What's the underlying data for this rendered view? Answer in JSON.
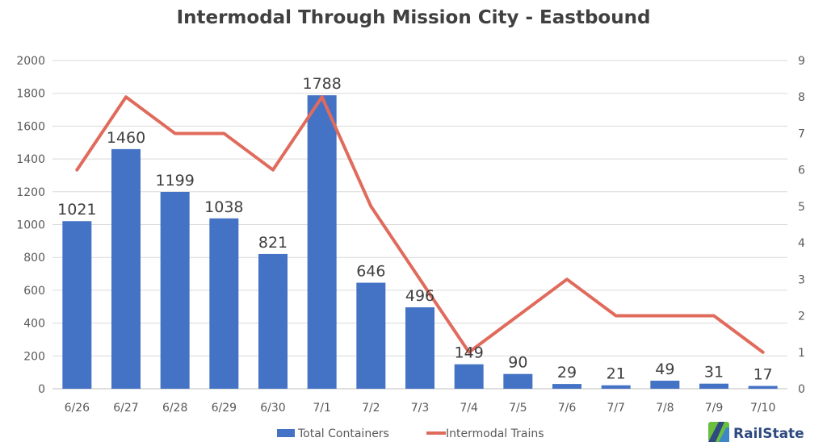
{
  "chart_data": {
    "type": "bar",
    "title": "Intermodal Through Mission City - Eastbound",
    "categories": [
      "6/26",
      "6/27",
      "6/28",
      "6/29",
      "6/30",
      "7/1",
      "7/2",
      "7/3",
      "7/4",
      "7/5",
      "7/6",
      "7/7",
      "7/8",
      "7/9",
      "7/10"
    ],
    "series": [
      {
        "name": "Total Containers",
        "type": "bar",
        "axis": "left",
        "color": "#4472c4",
        "values": [
          1021,
          1460,
          1199,
          1038,
          821,
          1788,
          646,
          496,
          149,
          90,
          29,
          21,
          49,
          31,
          17
        ]
      },
      {
        "name": "Intermodal Trains",
        "type": "line",
        "axis": "right",
        "color": "#e06b5c",
        "values": [
          6,
          8,
          7,
          7,
          6,
          8,
          5,
          3,
          1,
          2,
          3,
          2,
          2,
          2,
          1
        ]
      }
    ],
    "y_left": {
      "min": 0,
      "max": 2000,
      "step": 200,
      "ticks": [
        "0",
        "200",
        "400",
        "600",
        "800",
        "1000",
        "1200",
        "1400",
        "1600",
        "1800",
        "2000"
      ]
    },
    "y_right": {
      "min": 0,
      "max": 9,
      "step": 1,
      "ticks": [
        "0",
        "1",
        "2",
        "3",
        "4",
        "5",
        "6",
        "7",
        "8",
        "9"
      ]
    },
    "grid": true,
    "legend_position": "bottom"
  },
  "logo": {
    "text": "RailState"
  }
}
